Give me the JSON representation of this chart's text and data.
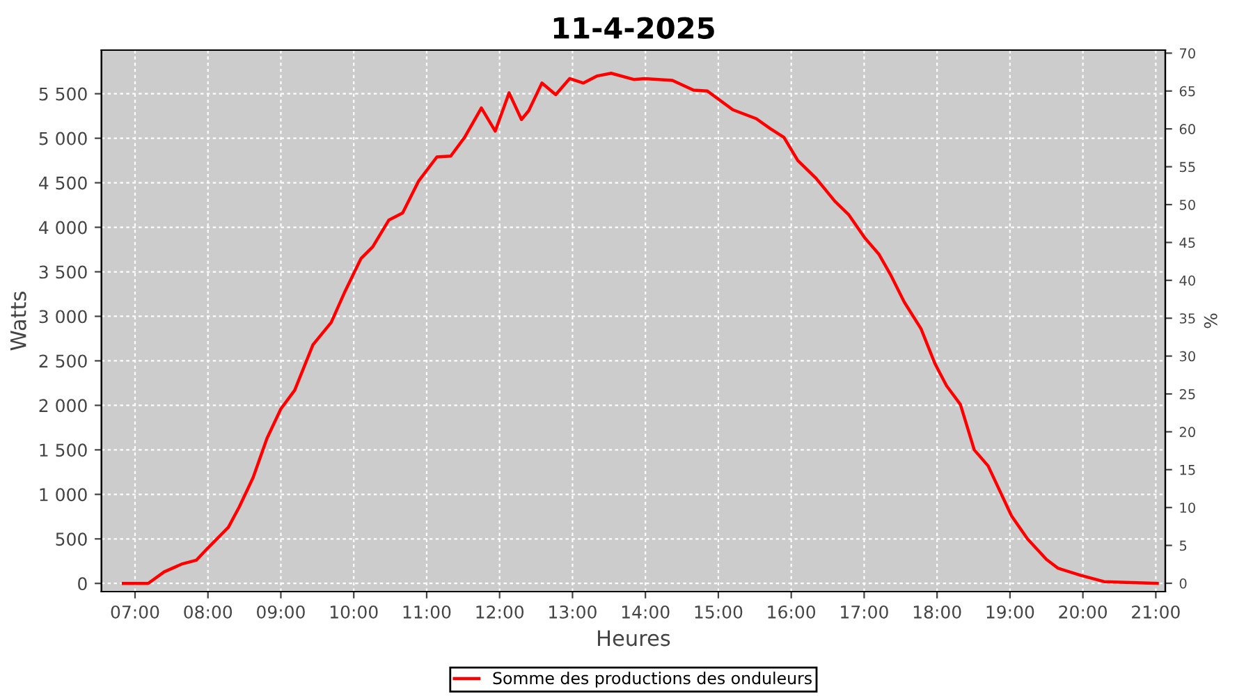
{
  "chart_data": {
    "type": "line",
    "title": "11-4-2025",
    "xlabel": "Heures",
    "ylabel": "Watts",
    "y2label": "%",
    "x": [
      6.84,
      7.18,
      7.4,
      7.65,
      7.84,
      7.99,
      8.28,
      8.43,
      8.62,
      8.81,
      9.0,
      9.19,
      9.44,
      9.69,
      9.88,
      10.1,
      10.26,
      10.48,
      10.67,
      10.89,
      11.14,
      11.33,
      11.52,
      11.75,
      11.94,
      12.13,
      12.3,
      12.4,
      12.58,
      12.77,
      12.96,
      13.15,
      13.34,
      13.53,
      13.84,
      13.99,
      14.37,
      14.66,
      14.85,
      15.2,
      15.52,
      15.71,
      15.9,
      16.09,
      16.34,
      16.6,
      16.79,
      17.01,
      17.2,
      17.36,
      17.55,
      17.78,
      17.97,
      18.13,
      18.32,
      18.51,
      18.7,
      19.02,
      19.24,
      19.5,
      19.66,
      19.97,
      20.29,
      21.02
    ],
    "series": [
      {
        "name": "Somme des productions des onduleurs",
        "color": "#ff0000",
        "values": [
          0,
          0,
          130,
          220,
          260,
          390,
          630,
          860,
          1190,
          1630,
          1960,
          2170,
          2680,
          2930,
          3280,
          3650,
          3780,
          4080,
          4160,
          4520,
          4790,
          4800,
          5010,
          5340,
          5080,
          5510,
          5210,
          5310,
          5620,
          5490,
          5670,
          5620,
          5700,
          5730,
          5660,
          5670,
          5650,
          5540,
          5530,
          5320,
          5220,
          5110,
          5010,
          4750,
          4550,
          4290,
          4140,
          3880,
          3700,
          3470,
          3160,
          2860,
          2470,
          2220,
          2010,
          1500,
          1320,
          760,
          500,
          270,
          170,
          90,
          20,
          0
        ]
      }
    ],
    "xlim": [
      6.54,
      21.13
    ],
    "xticks": [
      {
        "value": 7,
        "label": "07:00"
      },
      {
        "value": 8,
        "label": "08:00"
      },
      {
        "value": 9,
        "label": "09:00"
      },
      {
        "value": 10,
        "label": "10:00"
      },
      {
        "value": 11,
        "label": "11:00"
      },
      {
        "value": 12,
        "label": "12:00"
      },
      {
        "value": 13,
        "label": "13:00"
      },
      {
        "value": 14,
        "label": "14:00"
      },
      {
        "value": 15,
        "label": "15:00"
      },
      {
        "value": 16,
        "label": "16:00"
      },
      {
        "value": 17,
        "label": "17:00"
      },
      {
        "value": 18,
        "label": "18:00"
      },
      {
        "value": 19,
        "label": "19:00"
      },
      {
        "value": 20,
        "label": "20:00"
      },
      {
        "value": 21,
        "label": "21:00"
      }
    ],
    "ylim": [
      -92,
      5990
    ],
    "yticks": [
      {
        "value": 0,
        "label": "0"
      },
      {
        "value": 500,
        "label": "500"
      },
      {
        "value": 1000,
        "label": "1 000"
      },
      {
        "value": 1500,
        "label": "1 500"
      },
      {
        "value": 2000,
        "label": "2 000"
      },
      {
        "value": 2500,
        "label": "2 500"
      },
      {
        "value": 3000,
        "label": "3 000"
      },
      {
        "value": 3500,
        "label": "3 500"
      },
      {
        "value": 4000,
        "label": "4 000"
      },
      {
        "value": 4500,
        "label": "4 500"
      },
      {
        "value": 5000,
        "label": "5 000"
      },
      {
        "value": 5500,
        "label": "5 500"
      }
    ],
    "y2lim": [
      -1.1,
      70.4
    ],
    "y2ticks": [
      0,
      5,
      10,
      15,
      20,
      25,
      30,
      35,
      40,
      45,
      50,
      55,
      60,
      65,
      70
    ],
    "grid": true,
    "legend": "bottom",
    "marker": "none",
    "line_style": "solid"
  }
}
